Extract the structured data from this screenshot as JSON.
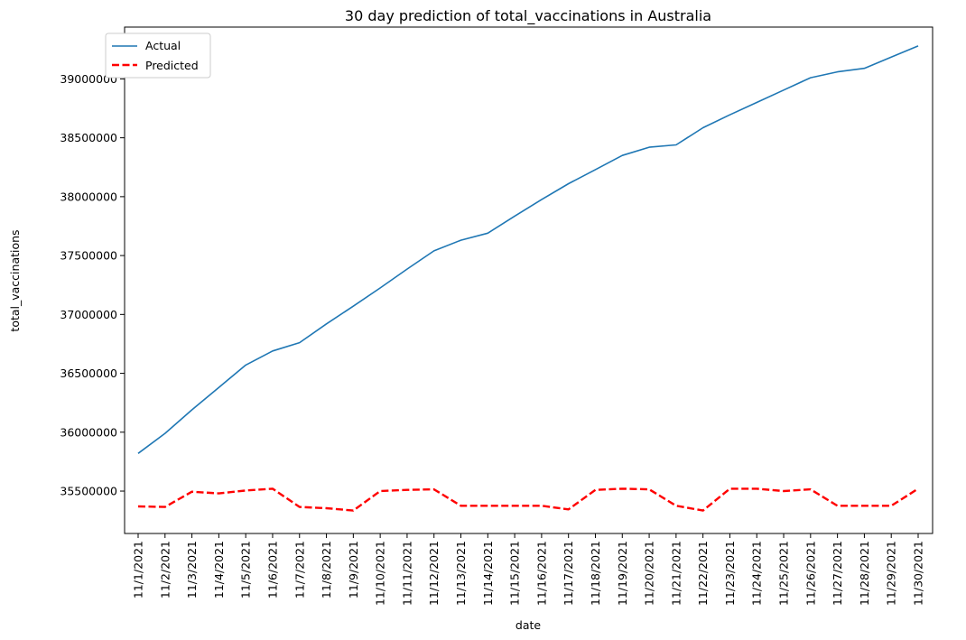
{
  "chart_data": {
    "type": "line",
    "title": "30 day prediction of total_vaccinations in Australia",
    "xlabel": "date",
    "ylabel": "total_vaccinations",
    "categories": [
      "11/1/2021",
      "11/2/2021",
      "11/3/2021",
      "11/4/2021",
      "11/5/2021",
      "11/6/2021",
      "11/7/2021",
      "11/8/2021",
      "11/9/2021",
      "11/10/2021",
      "11/11/2021",
      "11/12/2021",
      "11/13/2021",
      "11/14/2021",
      "11/15/2021",
      "11/16/2021",
      "11/17/2021",
      "11/18/2021",
      "11/19/2021",
      "11/20/2021",
      "11/21/2021",
      "11/22/2021",
      "11/23/2021",
      "11/24/2021",
      "11/25/2021",
      "11/26/2021",
      "11/27/2021",
      "11/28/2021",
      "11/29/2021",
      "11/30/2021"
    ],
    "yticks": [
      35500000,
      36000000,
      36500000,
      37000000,
      37500000,
      38000000,
      38500000,
      39000000
    ],
    "ylim": [
      35140000,
      39440000
    ],
    "grid": false,
    "legend": "top-left",
    "series": [
      {
        "name": "Actual",
        "color": "#1f77b4",
        "style": "solid",
        "values": [
          35820000,
          35990000,
          36190000,
          36380000,
          36570000,
          36690000,
          36760000,
          36920000,
          37070000,
          37225000,
          37385000,
          37540000,
          37630000,
          37690000,
          37835000,
          37975000,
          38110000,
          38230000,
          38350000,
          38420000,
          38440000,
          38585000,
          38695000,
          38800000,
          38905000,
          39010000,
          39060000,
          39090000,
          39185000,
          39280000
        ]
      },
      {
        "name": "Predicted",
        "color": "#ff0000",
        "style": "dashed",
        "values": [
          35370000,
          35365000,
          35495000,
          35480000,
          35505000,
          35520000,
          35365000,
          35355000,
          35335000,
          35500000,
          35510000,
          35515000,
          35375000,
          35375000,
          35375000,
          35375000,
          35345000,
          35510000,
          35520000,
          35515000,
          35375000,
          35335000,
          35520000,
          35520000,
          35500000,
          35515000,
          35375000,
          35375000,
          35375000,
          35520000
        ]
      }
    ]
  }
}
